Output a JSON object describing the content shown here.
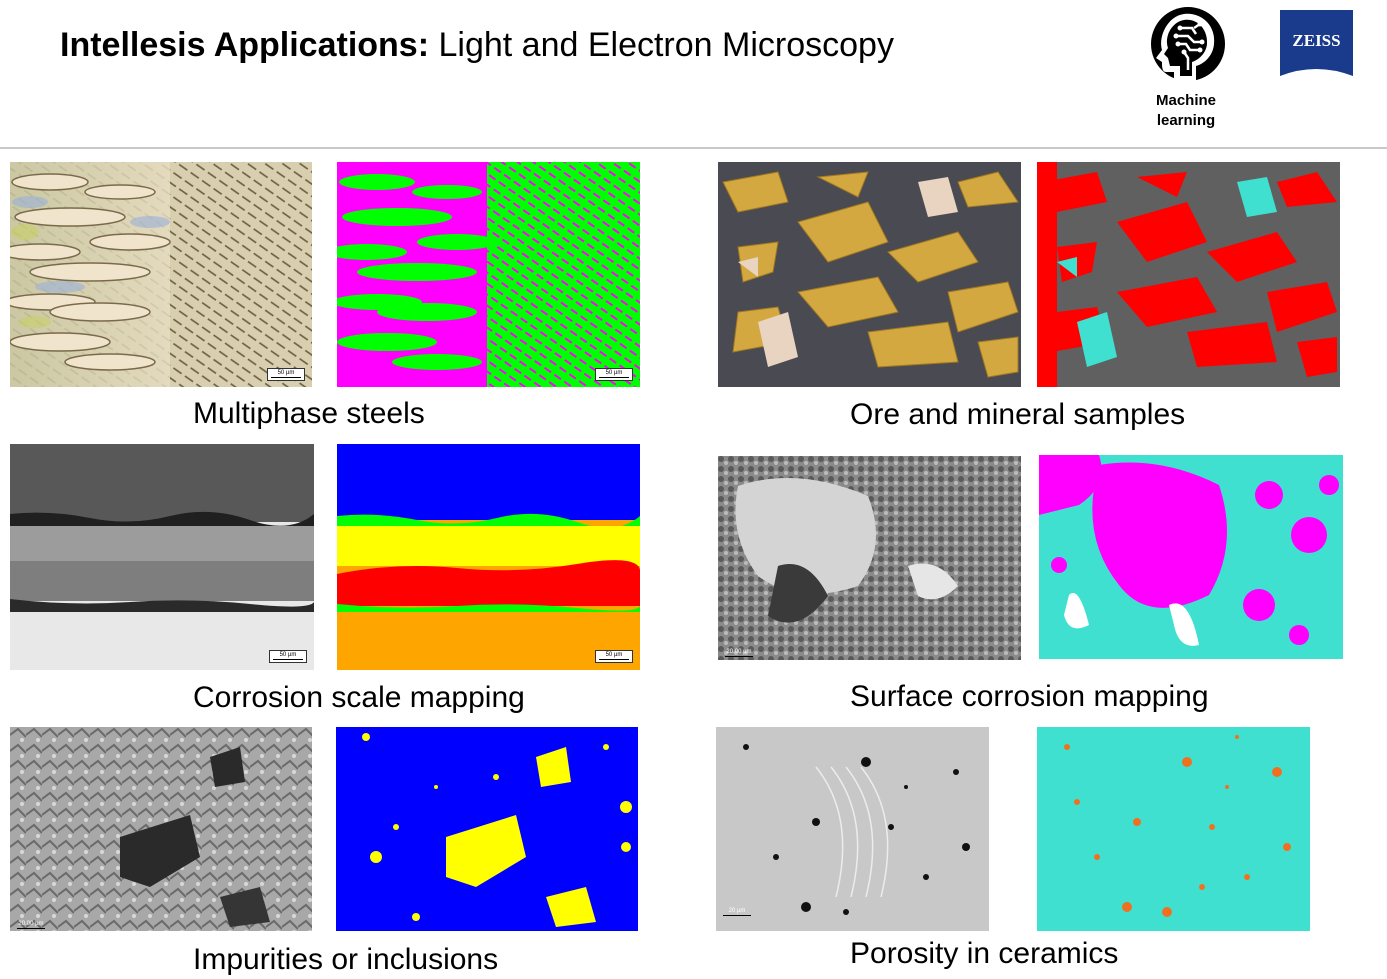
{
  "header": {
    "title_bold": "Intellesis Applications:",
    "title_rest": " Light and Electron Microscopy",
    "ml_label_line1": "Machine",
    "ml_label_line2": "learning",
    "brand": "ZEISS"
  },
  "panels": [
    {
      "caption": "Multiphase steels",
      "scale_raw": "50 µm",
      "scale_seg": "50 µm"
    },
    {
      "caption": "Ore and mineral samples"
    },
    {
      "caption": "Corrosion scale mapping",
      "scale_raw": "50 µm",
      "scale_seg": "50 µm"
    },
    {
      "caption": "Surface corrosion mapping",
      "scale_raw": "20.00 µm"
    },
    {
      "caption": "Impurities or inclusions",
      "scale_raw": "20.00 µm"
    },
    {
      "caption": "Porosity in ceramics",
      "scale_raw": "20 µm"
    }
  ],
  "colors": {
    "zeiss_blue": "#1a3a8c",
    "seg_magenta": "#ff00ff",
    "seg_green": "#00ff00",
    "seg_red": "#ff0000",
    "seg_cyan": "#40e0d0",
    "seg_grey": "#606060",
    "seg_blue": "#0000ff",
    "seg_yellow": "#ffff00",
    "seg_orange": "#ffa500",
    "pore_orange": "#f07020"
  }
}
